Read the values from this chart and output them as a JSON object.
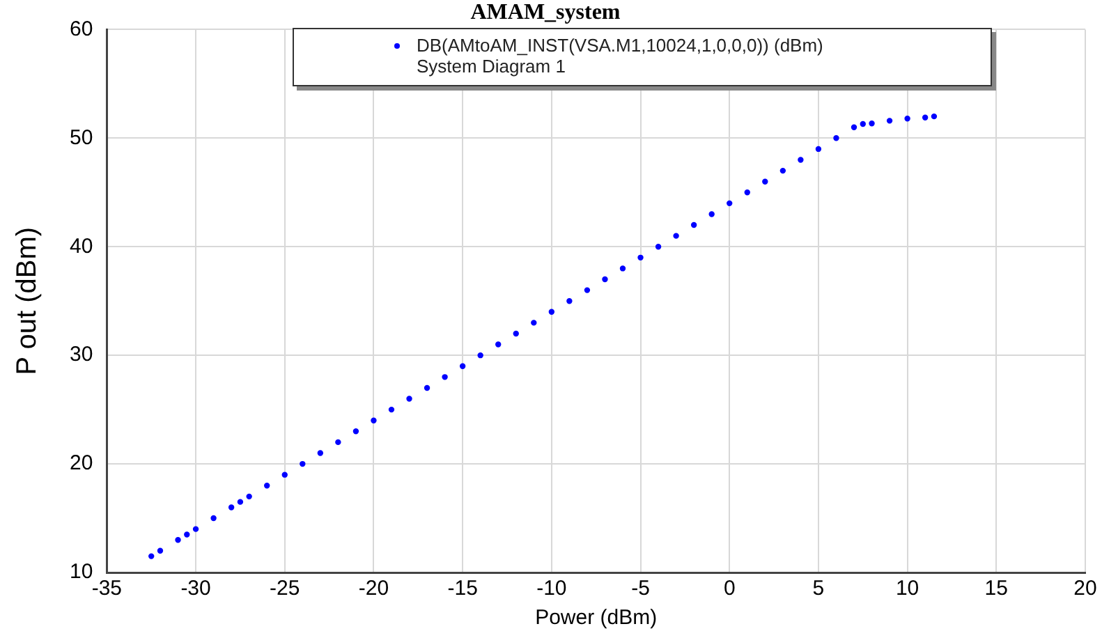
{
  "chart_data": {
    "type": "scatter",
    "title": "AMAM_system",
    "xlabel": "Power (dBm)",
    "ylabel": "P out (dBm)",
    "series": [
      {
        "name": "DB(AMtoAM_INST(VSA.M1,10024,1,0,0,0)) (dBm)",
        "color": "#0000ff",
        "x": [
          -32.5,
          -32,
          -31,
          -30.5,
          -30,
          -29,
          -28,
          -27.5,
          -27,
          -26,
          -25,
          -24,
          -23,
          -22,
          -21,
          -20,
          -19,
          -18,
          -17,
          -16,
          -15,
          -14,
          -13,
          -12,
          -11,
          -10,
          -9,
          -8,
          -7,
          -6,
          -5,
          -4,
          -3,
          -2,
          -1,
          0,
          1,
          2,
          3,
          4,
          5,
          6,
          7,
          7.5,
          8,
          9,
          10,
          11,
          11.5
        ],
        "values": [
          11.5,
          12,
          13,
          13.5,
          14,
          15,
          16,
          16.5,
          17,
          18,
          19,
          20,
          21,
          22,
          23,
          24,
          25,
          26,
          27,
          28,
          29,
          30,
          31,
          32,
          33,
          34,
          35,
          36,
          37,
          38,
          39,
          40,
          41,
          42,
          43,
          44,
          45,
          46,
          47,
          48,
          49,
          50,
          51,
          51.3,
          51.35,
          51.6,
          51.8,
          51.9,
          52
        ]
      }
    ],
    "annotations": [
      "System Diagram 1"
    ],
    "xlim": [
      -35,
      20
    ],
    "xticks": [
      -35,
      -30,
      -25,
      -20,
      -15,
      -10,
      -5,
      0,
      5,
      10,
      15,
      20
    ],
    "ylim": [
      10,
      60
    ],
    "yticks": [
      10,
      20,
      30,
      40,
      50,
      60
    ],
    "grid": true,
    "legend": "top",
    "marker": "circle"
  }
}
